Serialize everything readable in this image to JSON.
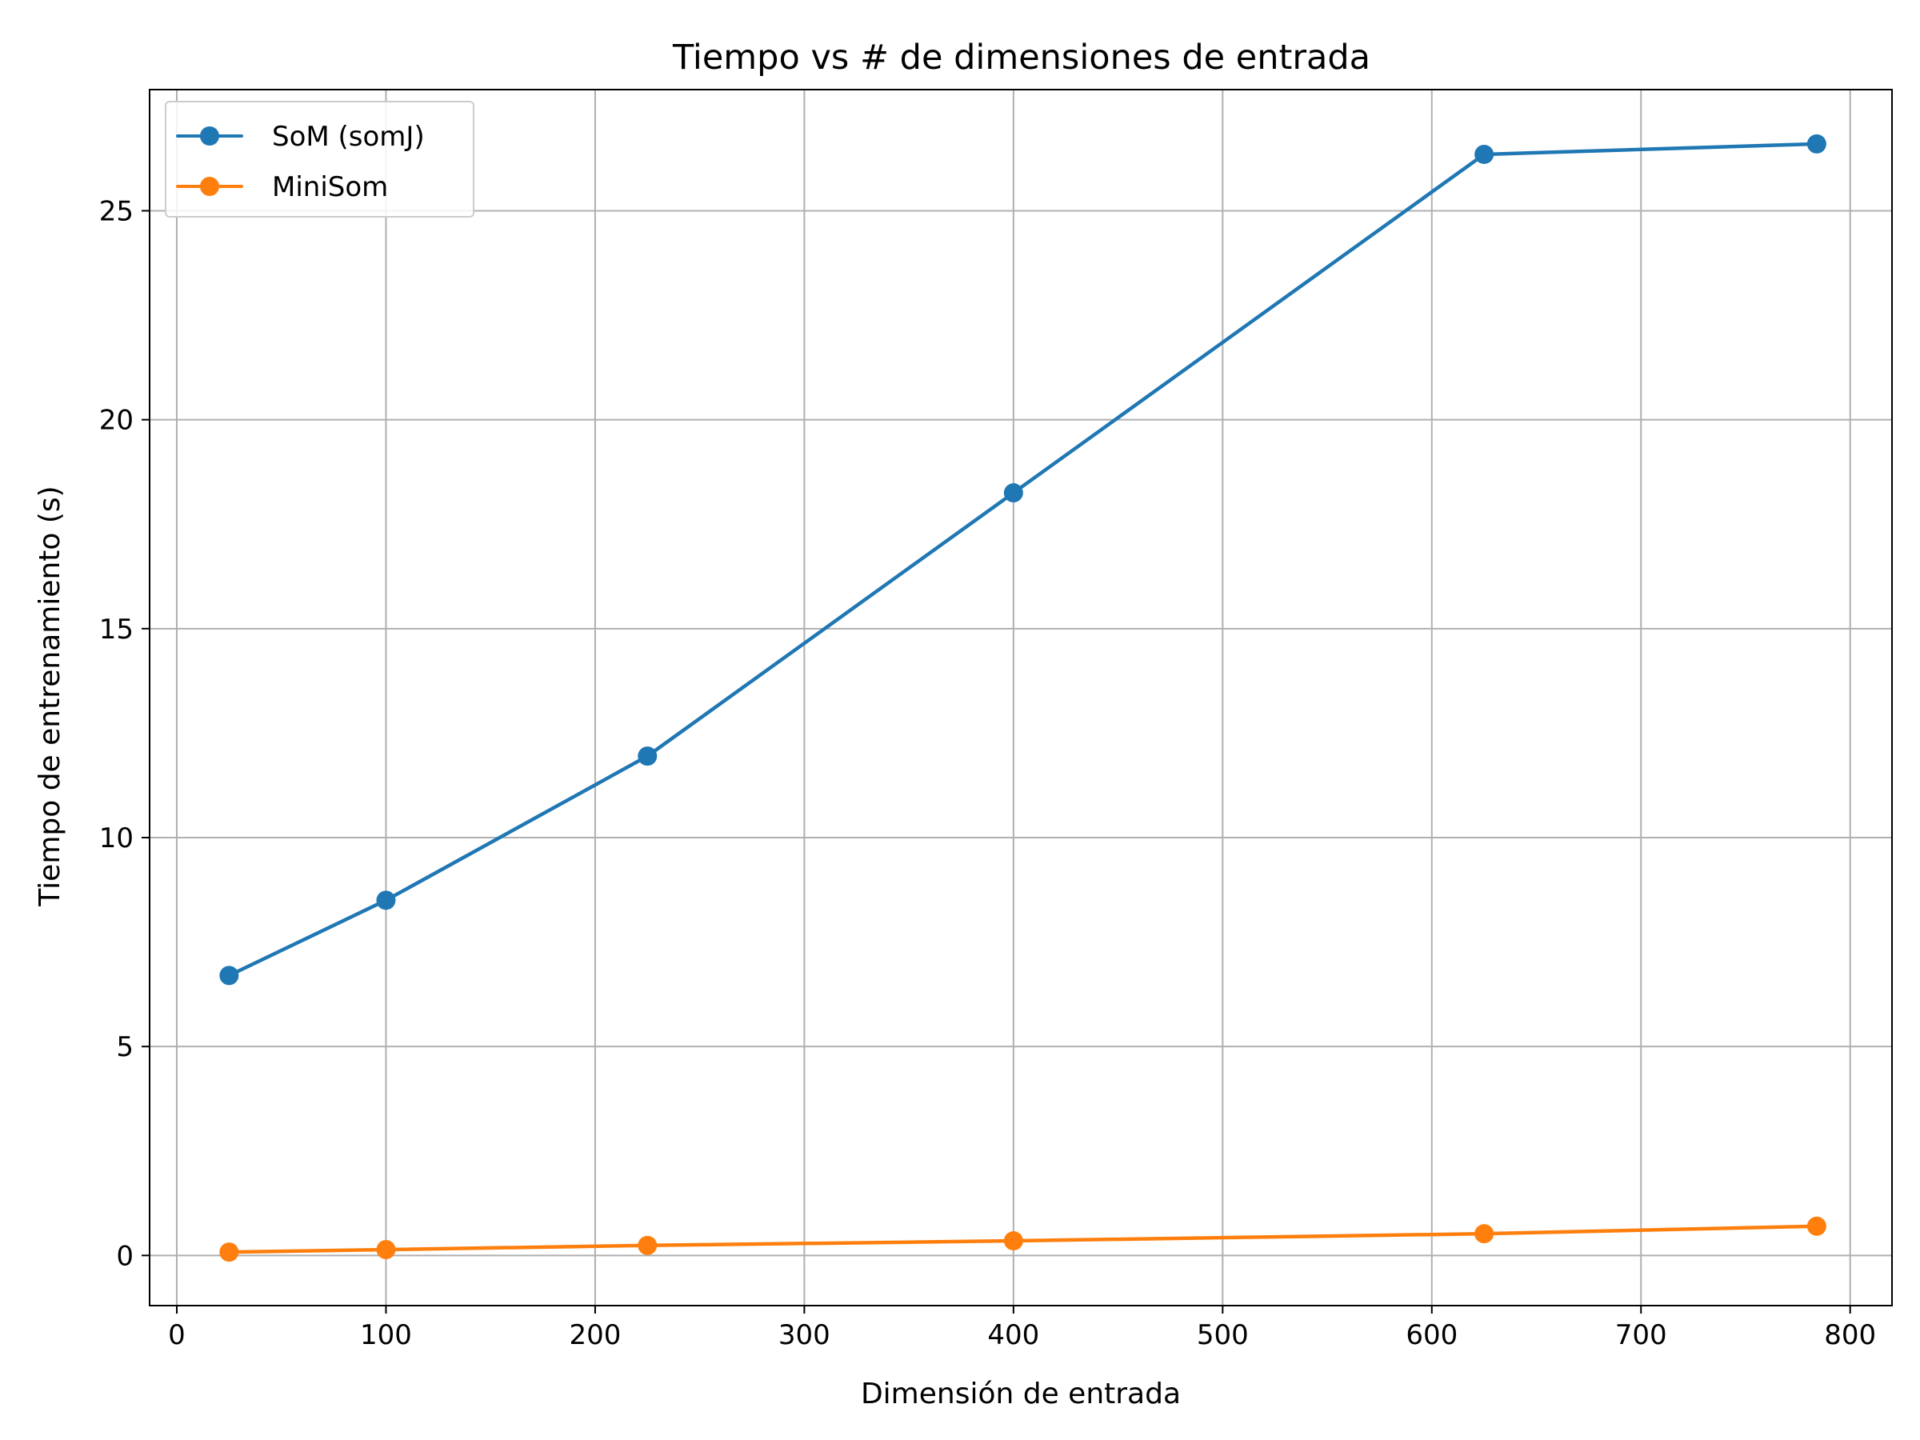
{
  "chart_data": {
    "type": "line",
    "title": "Tiempo vs # de dimensiones de entrada",
    "xlabel": "Dimensión de entrada",
    "ylabel": "Tiempo de entrenamiento (s)",
    "xlim": [
      -13,
      820
    ],
    "ylim": [
      -1.2,
      27.9
    ],
    "xticks": [
      0,
      100,
      200,
      300,
      400,
      500,
      600,
      700,
      800
    ],
    "yticks": [
      0,
      5,
      10,
      15,
      20,
      25
    ],
    "grid": true,
    "legend_position": "upper-left",
    "x": [
      25,
      100,
      225,
      400,
      625,
      784
    ],
    "series": [
      {
        "name": "SoM (somJ)",
        "color": "#1f77b4",
        "marker": "circle",
        "values": [
          6.7,
          8.5,
          11.95,
          18.25,
          26.35,
          26.6
        ]
      },
      {
        "name": "MiniSom",
        "color": "#ff7f0e",
        "marker": "circle",
        "values": [
          0.08,
          0.14,
          0.24,
          0.35,
          0.52,
          0.7
        ]
      }
    ]
  }
}
